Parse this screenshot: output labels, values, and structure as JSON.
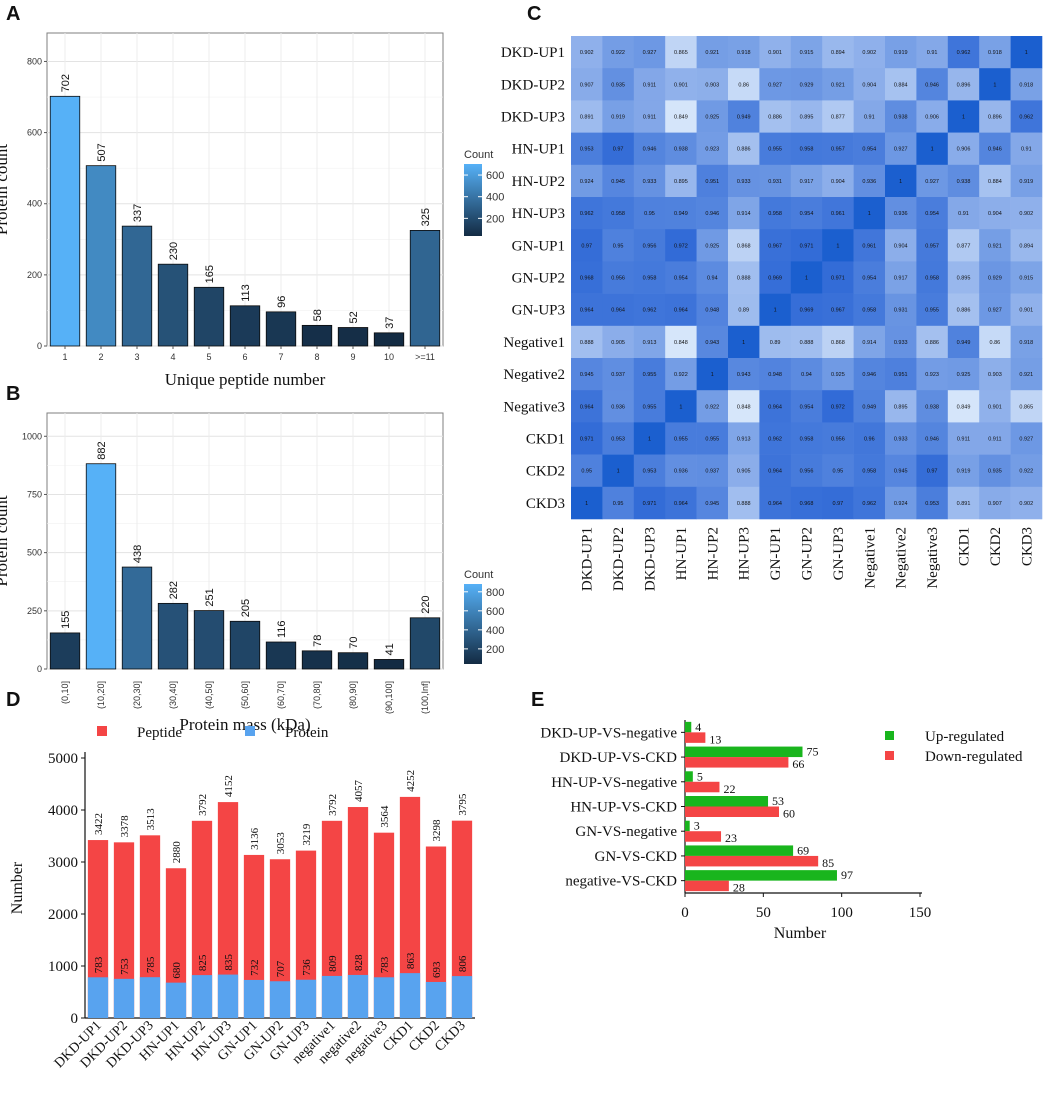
{
  "chart_data": [
    {
      "id": "A",
      "panel_label": "A",
      "type": "bar",
      "title": "",
      "xlabel": "Unique peptide number",
      "ylabel": "Protein count",
      "categories": [
        "1",
        "2",
        "3",
        "4",
        "5",
        "6",
        "7",
        "8",
        "9",
        "10",
        ">=11"
      ],
      "values": [
        702,
        507,
        337,
        230,
        165,
        113,
        96,
        58,
        52,
        37,
        325
      ],
      "ylim": [
        0,
        880
      ],
      "yticks": [
        0,
        200,
        400,
        600,
        800
      ],
      "legend": {
        "title": "Count",
        "ticks": [
          200,
          400,
          600
        ],
        "range": [
          37,
          702
        ],
        "position": "right"
      },
      "grid": true
    },
    {
      "id": "B",
      "panel_label": "B",
      "type": "bar",
      "title": "",
      "xlabel": "Protein mass (kDa)",
      "ylabel": "Protein count",
      "categories": [
        "(0,10]",
        "(10,20]",
        "(20,30]",
        "(30,40]",
        "(40,50]",
        "(50,60]",
        "(60,70]",
        "(70,80]",
        "(80,90]",
        "(90,100]",
        "(100,Inf]"
      ],
      "values": [
        155,
        882,
        438,
        282,
        251,
        205,
        116,
        78,
        70,
        41,
        220
      ],
      "ylim": [
        0,
        1100
      ],
      "yticks": [
        0,
        250,
        500,
        750,
        1000
      ],
      "legend": {
        "title": "Count",
        "ticks": [
          200,
          400,
          600,
          800
        ],
        "range": [
          41,
          882
        ],
        "position": "right"
      },
      "grid": true
    },
    {
      "id": "C",
      "panel_label": "C",
      "type": "heatmap",
      "row_labels": [
        "DKD-UP1",
        "DKD-UP2",
        "DKD-UP3",
        "HN-UP1",
        "HN-UP2",
        "HN-UP3",
        "GN-UP1",
        "GN-UP2",
        "GN-UP3",
        "Negative1",
        "Negative2",
        "Negative3",
        "CKD1",
        "CKD2",
        "CKD3"
      ],
      "col_labels": [
        "DKD-UP1",
        "DKD-UP2",
        "DKD-UP3",
        "HN-UP1",
        "HN-UP2",
        "HN-UP3",
        "GN-UP1",
        "GN-UP2",
        "GN-UP3",
        "Negative1",
        "Negative2",
        "Negative3",
        "CKD1",
        "CKD2",
        "CKD3"
      ],
      "values": [
        [
          0.902,
          0.922,
          0.927,
          0.865,
          0.921,
          0.918,
          0.901,
          0.915,
          0.894,
          0.902,
          0.919,
          0.91,
          0.962,
          0.918,
          1
        ],
        [
          0.907,
          0.935,
          0.911,
          0.901,
          0.903,
          0.86,
          0.927,
          0.929,
          0.921,
          0.904,
          0.884,
          0.946,
          0.896,
          1,
          0.918
        ],
        [
          0.891,
          0.919,
          0.911,
          0.849,
          0.925,
          0.949,
          0.886,
          0.895,
          0.877,
          0.91,
          0.938,
          0.906,
          1,
          0.896,
          0.962
        ],
        [
          0.953,
          0.97,
          0.946,
          0.938,
          0.923,
          0.886,
          0.955,
          0.958,
          0.957,
          0.954,
          0.927,
          1,
          0.906,
          0.946,
          0.91
        ],
        [
          0.924,
          0.945,
          0.933,
          0.895,
          0.951,
          0.933,
          0.931,
          0.917,
          0.904,
          0.936,
          1,
          0.927,
          0.938,
          0.884,
          0.919
        ],
        [
          0.962,
          0.958,
          0.95,
          0.949,
          0.946,
          0.914,
          0.958,
          0.954,
          0.961,
          1,
          0.936,
          0.954,
          0.91,
          0.904,
          0.902
        ],
        [
          0.97,
          0.95,
          0.956,
          0.972,
          0.925,
          0.868,
          0.967,
          0.971,
          1,
          0.961,
          0.904,
          0.957,
          0.877,
          0.921,
          0.894
        ],
        [
          0.968,
          0.956,
          0.958,
          0.954,
          0.94,
          0.888,
          0.969,
          1,
          0.971,
          0.954,
          0.917,
          0.958,
          0.895,
          0.929,
          0.915
        ],
        [
          0.964,
          0.964,
          0.962,
          0.964,
          0.948,
          0.89,
          1,
          0.969,
          0.967,
          0.958,
          0.931,
          0.955,
          0.886,
          0.927,
          0.901
        ],
        [
          0.888,
          0.905,
          0.913,
          0.848,
          0.943,
          1,
          0.89,
          0.888,
          0.868,
          0.914,
          0.933,
          0.886,
          0.949,
          0.86,
          0.918
        ],
        [
          0.945,
          0.937,
          0.955,
          0.922,
          1,
          0.943,
          0.948,
          0.94,
          0.925,
          0.946,
          0.951,
          0.923,
          0.925,
          0.903,
          0.921
        ],
        [
          0.964,
          0.936,
          0.955,
          1,
          0.922,
          0.848,
          0.964,
          0.954,
          0.972,
          0.949,
          0.895,
          0.938,
          0.849,
          0.901,
          0.865
        ],
        [
          0.971,
          0.953,
          1,
          0.955,
          0.955,
          0.913,
          0.962,
          0.958,
          0.956,
          0.96,
          0.933,
          0.946,
          0.911,
          0.911,
          0.927
        ],
        [
          0.95,
          1,
          0.953,
          0.936,
          0.937,
          0.905,
          0.964,
          0.956,
          0.95,
          0.958,
          0.945,
          0.97,
          0.919,
          0.935,
          0.922
        ],
        [
          1,
          0.95,
          0.971,
          0.964,
          0.945,
          0.888,
          0.964,
          0.968,
          0.97,
          0.962,
          0.924,
          0.953,
          0.891,
          0.907,
          0.902
        ]
      ],
      "color_range": [
        0.848,
        1
      ]
    },
    {
      "id": "D",
      "panel_label": "D",
      "type": "bar",
      "title": "",
      "xlabel": "",
      "ylabel": "Number",
      "categories": [
        "DKD-UP1",
        "DKD-UP2",
        "DKD-UP3",
        "HN-UP1",
        "HN-UP2",
        "HN-UP3",
        "GN-UP1",
        "GN-UP2",
        "GN-UP3",
        "negative1",
        "negative2",
        "negative3",
        "CKD1",
        "CKD2",
        "CKD3"
      ],
      "series": [
        {
          "name": "Peptide",
          "color": "#f44545",
          "values": [
            3422,
            3378,
            3513,
            2880,
            3792,
            4152,
            3136,
            3053,
            3219,
            3792,
            4057,
            3564,
            4252,
            3298,
            3795
          ]
        },
        {
          "name": "Protein",
          "color": "#58a3ef",
          "values": [
            783,
            753,
            785,
            680,
            825,
            835,
            732,
            707,
            736,
            809,
            828,
            783,
            863,
            693,
            806
          ]
        }
      ],
      "ylim": [
        0,
        5000
      ],
      "yticks": [
        0,
        1000,
        2000,
        3000,
        4000,
        5000
      ],
      "legend": {
        "position": "top"
      }
    },
    {
      "id": "E",
      "panel_label": "E",
      "type": "bar",
      "orientation": "horizontal",
      "title": "",
      "xlabel": "Number",
      "ylabel": "",
      "categories": [
        "DKD-UP-VS-negative",
        "DKD-UP-VS-CKD",
        "HN-UP-VS-negative",
        "HN-UP-VS-CKD",
        "GN-VS-negative",
        "GN-VS-CKD",
        "negative-VS-CKD"
      ],
      "series": [
        {
          "name": "Up-regulated",
          "color": "#19b51d",
          "values": [
            4,
            75,
            5,
            53,
            3,
            69,
            97
          ]
        },
        {
          "name": "Down-regulated",
          "color": "#f44545",
          "values": [
            13,
            66,
            22,
            60,
            23,
            85,
            28
          ]
        }
      ],
      "xlim": [
        0,
        150
      ],
      "xticks": [
        0,
        50,
        100,
        150
      ],
      "legend": {
        "position": "top-right"
      }
    }
  ]
}
